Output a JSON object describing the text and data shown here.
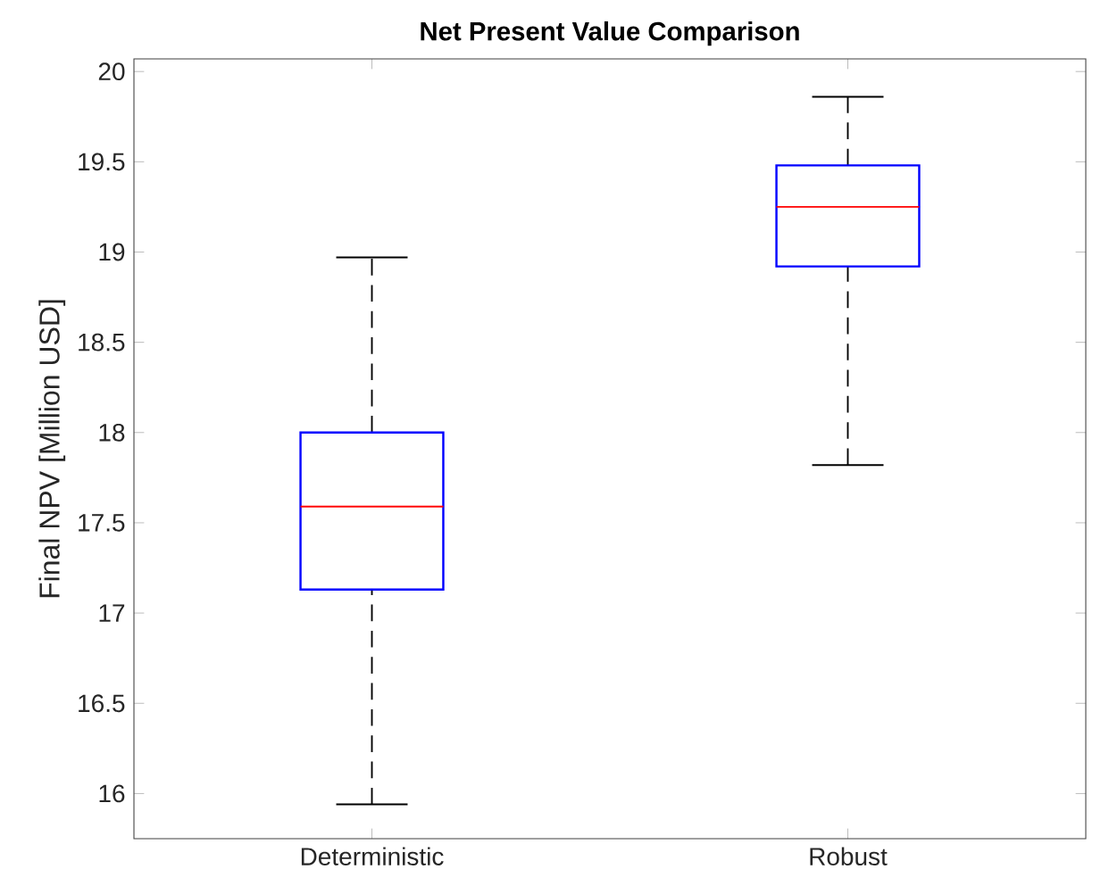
{
  "chart_data": {
    "type": "box",
    "title": "Net Present Value Comparison",
    "ylabel": "Final NPV [Million USD]",
    "categories": [
      "Deterministic",
      "Robust"
    ],
    "series": [
      {
        "color": "#0000ff",
        "boxes": [
          {
            "low": 15.94,
            "q1": 17.13,
            "median": 17.59,
            "q3": 18.0,
            "high": 18.97
          },
          {
            "low": 17.82,
            "q1": 18.92,
            "median": 19.25,
            "q3": 19.48,
            "high": 19.86
          }
        ]
      }
    ],
    "ylim": [
      15.75,
      20.07
    ],
    "yticks": [
      16,
      16.5,
      17,
      17.5,
      18,
      18.5,
      19,
      19.5,
      20
    ]
  }
}
